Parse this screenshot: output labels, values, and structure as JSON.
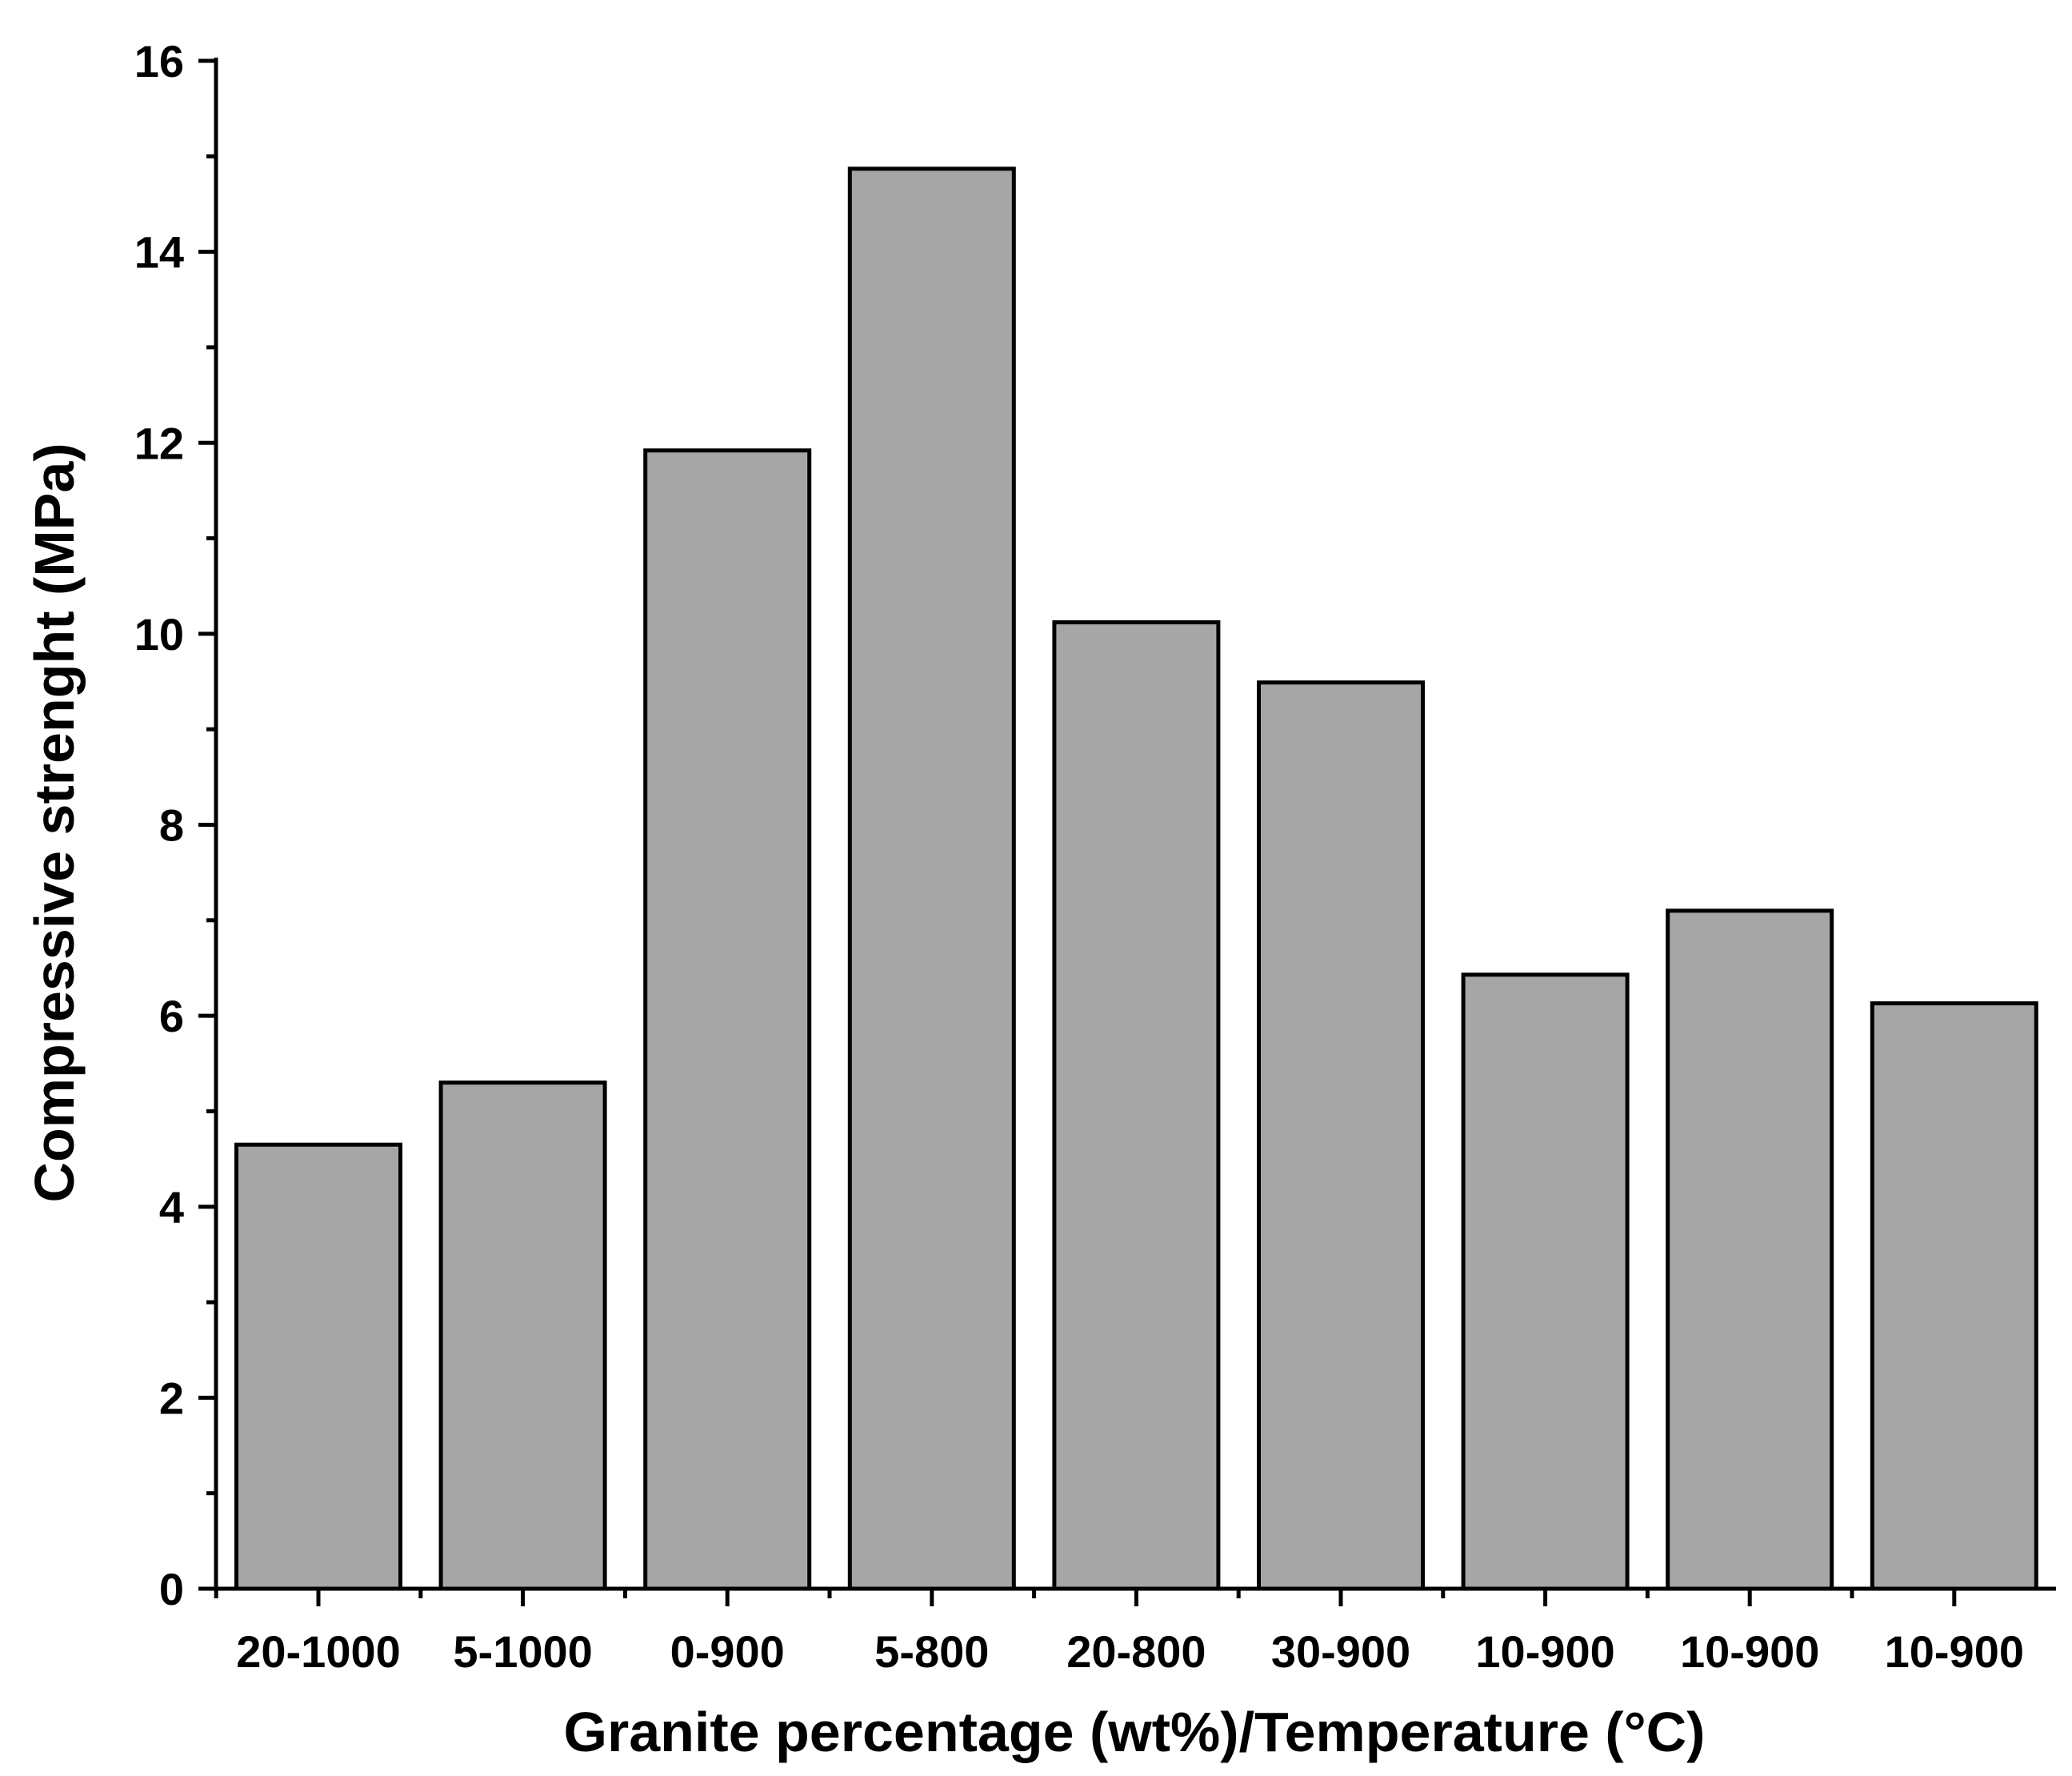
{
  "chart_data": {
    "type": "bar",
    "categories": [
      "20-1000",
      "5-1000",
      "0-900",
      "5-800",
      "20-800",
      "30-900",
      "10-900",
      "10-900",
      "10-900"
    ],
    "values": [
      4.65,
      5.3,
      11.92,
      14.87,
      10.12,
      9.49,
      6.43,
      7.1,
      6.13
    ],
    "xlabel": "Granite percentage (wt%)/Temperature (°C)",
    "ylabel": "Compressive strenght (MPa)",
    "ylim": [
      0,
      16
    ],
    "yticks": [
      "0",
      "2",
      "4",
      "6",
      "8",
      "10",
      "12",
      "14",
      "16"
    ],
    "grid": false,
    "bar_color": "#a6a6a6",
    "edge_color": "#000000"
  }
}
